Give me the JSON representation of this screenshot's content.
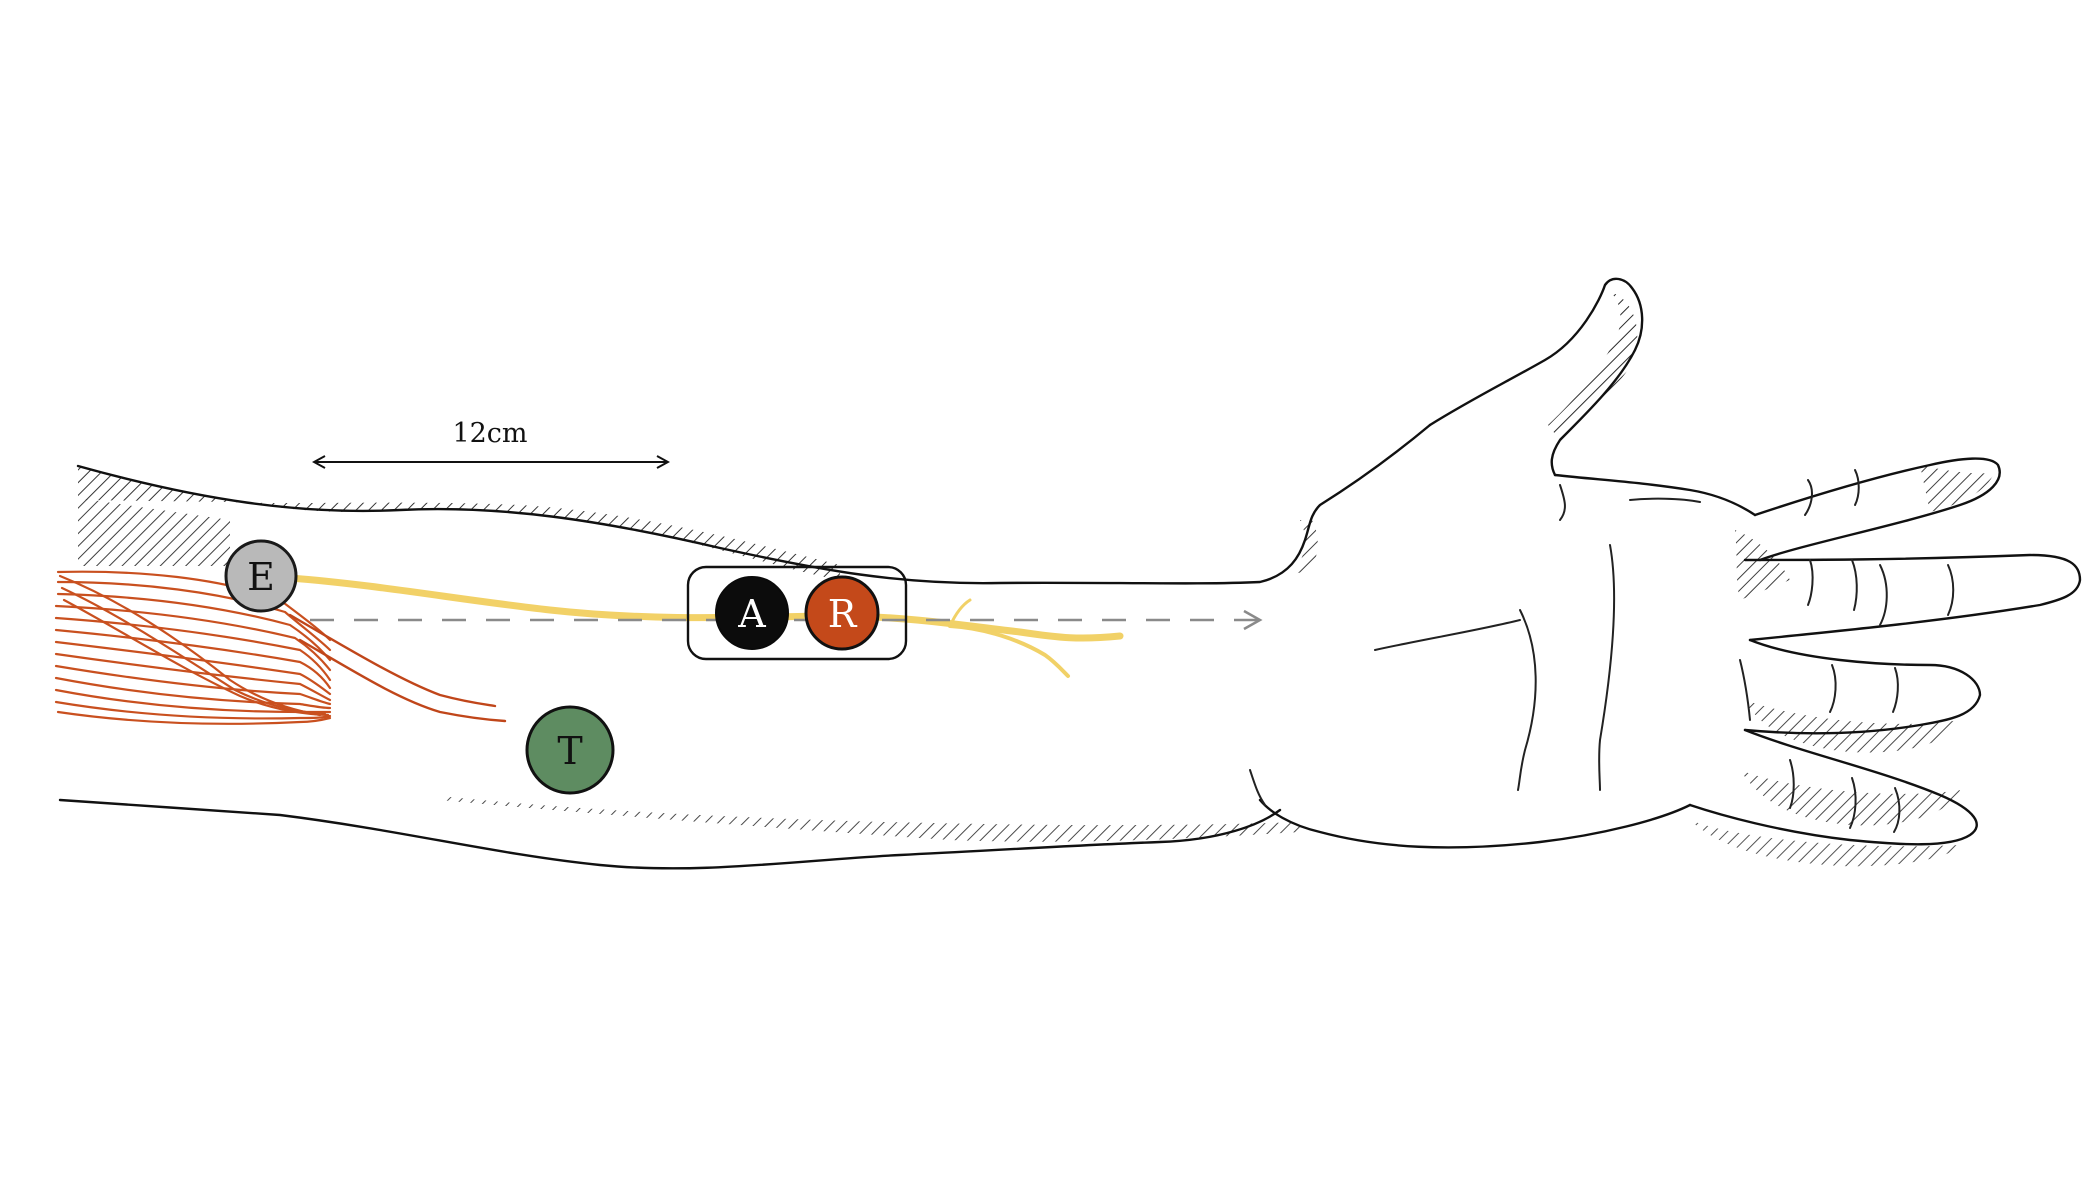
{
  "scale_bar": {
    "label": "12cm"
  },
  "electrodes": [
    {
      "id": "ground",
      "letter": "E",
      "fill": "#b9b9b9",
      "text_color": "#111111"
    },
    {
      "id": "active",
      "letter": "A",
      "fill": "#0c0c0c",
      "text_color": "#ffffff"
    },
    {
      "id": "reference",
      "letter": "R",
      "fill": "#c4491a",
      "text_color": "#ffffff"
    },
    {
      "id": "stimulator",
      "letter": "T",
      "fill": "#5e8c61",
      "text_color": "#111111"
    }
  ],
  "colors": {
    "muscle": "#c9501f",
    "nerve": "#f1cf5f",
    "outline": "#111111",
    "hatch": "#2a2a2a",
    "dashed_arrow": "#8a8a8a"
  }
}
